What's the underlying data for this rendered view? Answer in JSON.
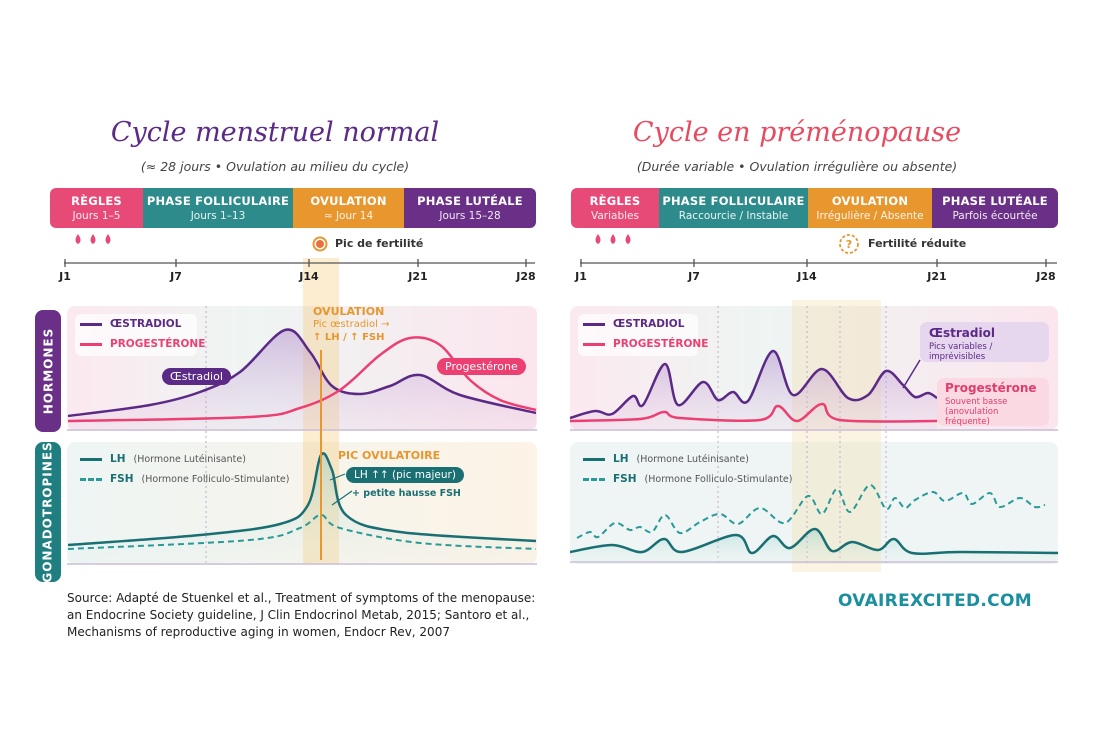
{
  "colors": {
    "regles": "#e84a78",
    "folliculaire": "#2d8b8b",
    "ovulation": "#e8962e",
    "luteale": "#6a2f86",
    "oestradiol": "#5b2a86",
    "progesterone": "#ec3f72",
    "lh": "#1a6f73",
    "brand": "#1a8fa0"
  },
  "left": {
    "title": "Cycle menstruel normal",
    "subtitle": "(≈ 28 jours • Ovulation au milieu du cycle)",
    "phases": [
      {
        "name": "RÈGLES",
        "detail": "Jours 1–5"
      },
      {
        "name": "PHASE FOLLICULAIRE",
        "detail": "Jours 1–13"
      },
      {
        "name": "OVULATION",
        "detail": "≈ Jour 14"
      },
      {
        "name": "PHASE LUTÉALE",
        "detail": "Jours 15–28"
      }
    ],
    "fertility_icon": "target-icon",
    "fertility": "Pic de fertilité",
    "ticks": [
      "J1",
      "J7",
      "J14",
      "J21",
      "J28"
    ],
    "hormones_label": "HORMONES",
    "gonado_label": "GONADOTROPINES",
    "legend": {
      "oestradiol": "ŒSTRADIOL",
      "progesterone": "PROGESTÉRONE",
      "lh": "LH",
      "lh_full": "(Hormone Lutéinisante)",
      "fsh": "FSH",
      "fsh_full": "(Hormone Folliculo-Stimulante)"
    },
    "ovulation_note": {
      "title": "OVULATION",
      "line1": "Pic œstradiol →",
      "line2": "↑ LH / ↑ FSH"
    },
    "oestradiol_tag": "Œstradiol",
    "progesterone_tag": "Progestérone",
    "peak": {
      "title": "PIC OVULATOIRE",
      "lh": "LH ↑↑ (pic majeur)",
      "fsh": "+ petite hausse FSH"
    }
  },
  "right": {
    "title": "Cycle en préménopause",
    "subtitle": "(Durée variable • Ovulation irrégulière ou absente)",
    "phases": [
      {
        "name": "RÈGLES",
        "detail": "Variables"
      },
      {
        "name": "PHASE FOLLICULAIRE",
        "detail": "Raccourcie / Instable"
      },
      {
        "name": "OVULATION",
        "detail": "Irrégulière / Absente"
      },
      {
        "name": "PHASE LUTÉALE",
        "detail": "Parfois écourtée"
      }
    ],
    "fertility_icon": "question-icon",
    "fertility": "Fertilité réduite",
    "ticks": [
      "J1",
      "J7",
      "J14",
      "J21",
      "J28"
    ],
    "legend": {
      "oestradiol": "ŒSTRADIOL",
      "progesterone": "PROGESTÉRONE",
      "lh": "LH",
      "lh_full": "(Hormone Lutéinisante)",
      "fsh": "FSH",
      "fsh_full": "(Hormone Folliculo-Stimulante)"
    },
    "oestradiol_box": {
      "title": "Œstradiol",
      "detail": "Pics variables / imprévisibles"
    },
    "progesterone_box": {
      "title": "Progestérone",
      "line1": "Souvent basse",
      "line2": "(anovulation fréquente)"
    }
  },
  "source": {
    "line1": "Source: Adapté de Stuenkel et al., Treatment of symptoms of the menopause:",
    "line2": "an Endocrine Society guideline, J Clin Endocrinol Metab, 2015; Santoro et al.,",
    "line3": "Mechanisms of reproductive aging in women, Endocr Rev, 2007"
  },
  "brand": "OVAIREXCITED.COM"
}
